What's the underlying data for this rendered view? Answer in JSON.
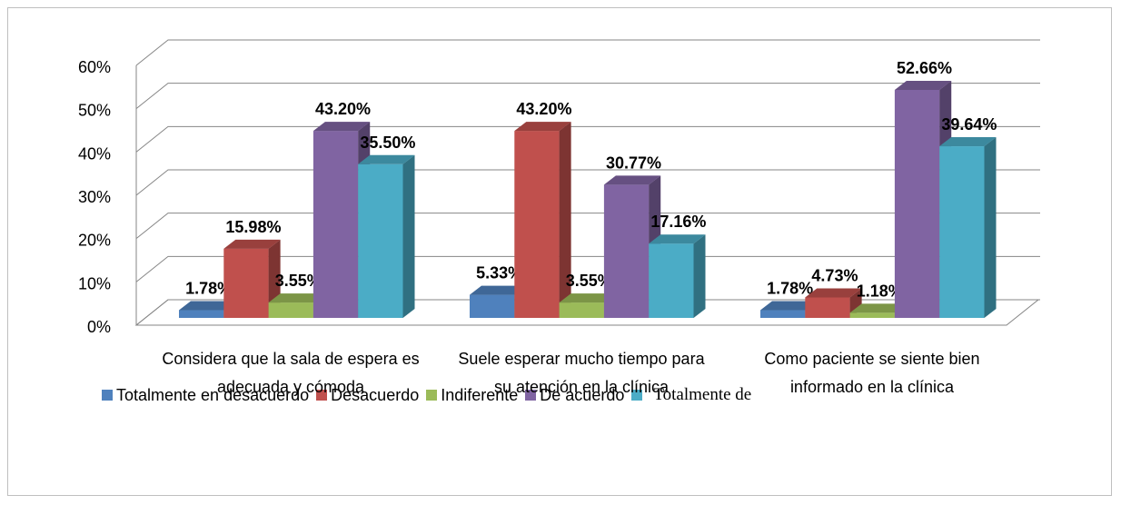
{
  "chart_data": {
    "type": "bar3d",
    "categories": [
      "Considera que la sala de espera es adecuada y cómoda",
      "Suele esperar mucho tiempo para su atención en la clínica",
      "Como paciente se siente bien informado en la clínica"
    ],
    "series": [
      {
        "name": "Totalmente en desacuerdo",
        "color": "#4f81bd",
        "values": [
          1.78,
          5.33,
          1.78
        ],
        "value_labels": [
          "1.78%",
          "5.33%",
          "1.78%"
        ]
      },
      {
        "name": "Desacuerdo",
        "color": "#c0504d",
        "values": [
          15.98,
          43.2,
          4.73
        ],
        "value_labels": [
          "15.98%",
          "43.20%",
          "4.73%"
        ]
      },
      {
        "name": "Indiferente",
        "color": "#9bbb59",
        "values": [
          3.55,
          3.55,
          1.18
        ],
        "value_labels": [
          "3.55%",
          "3.55%",
          "1.18%"
        ]
      },
      {
        "name": "De acuerdo",
        "color": "#8064a2",
        "values": [
          43.2,
          30.77,
          52.66
        ],
        "value_labels": [
          "43.20%",
          "30.77%",
          "52.66%"
        ]
      },
      {
        "name": "Totalmente de",
        "color": "#4bacc6",
        "values": [
          35.5,
          17.16,
          39.64
        ],
        "value_labels": [
          "35.50%",
          "17.16%",
          "39.64%"
        ]
      }
    ],
    "ylim": [
      0,
      60
    ],
    "yticks": [
      {
        "value": 0,
        "label": "0%"
      },
      {
        "value": 10,
        "label": "10%"
      },
      {
        "value": 20,
        "label": "20%"
      },
      {
        "value": 30,
        "label": "30%"
      },
      {
        "value": 40,
        "label": "40%"
      },
      {
        "value": 50,
        "label": "50%"
      },
      {
        "value": 60,
        "label": "60%"
      }
    ],
    "grid": true,
    "legend": "bottom"
  }
}
